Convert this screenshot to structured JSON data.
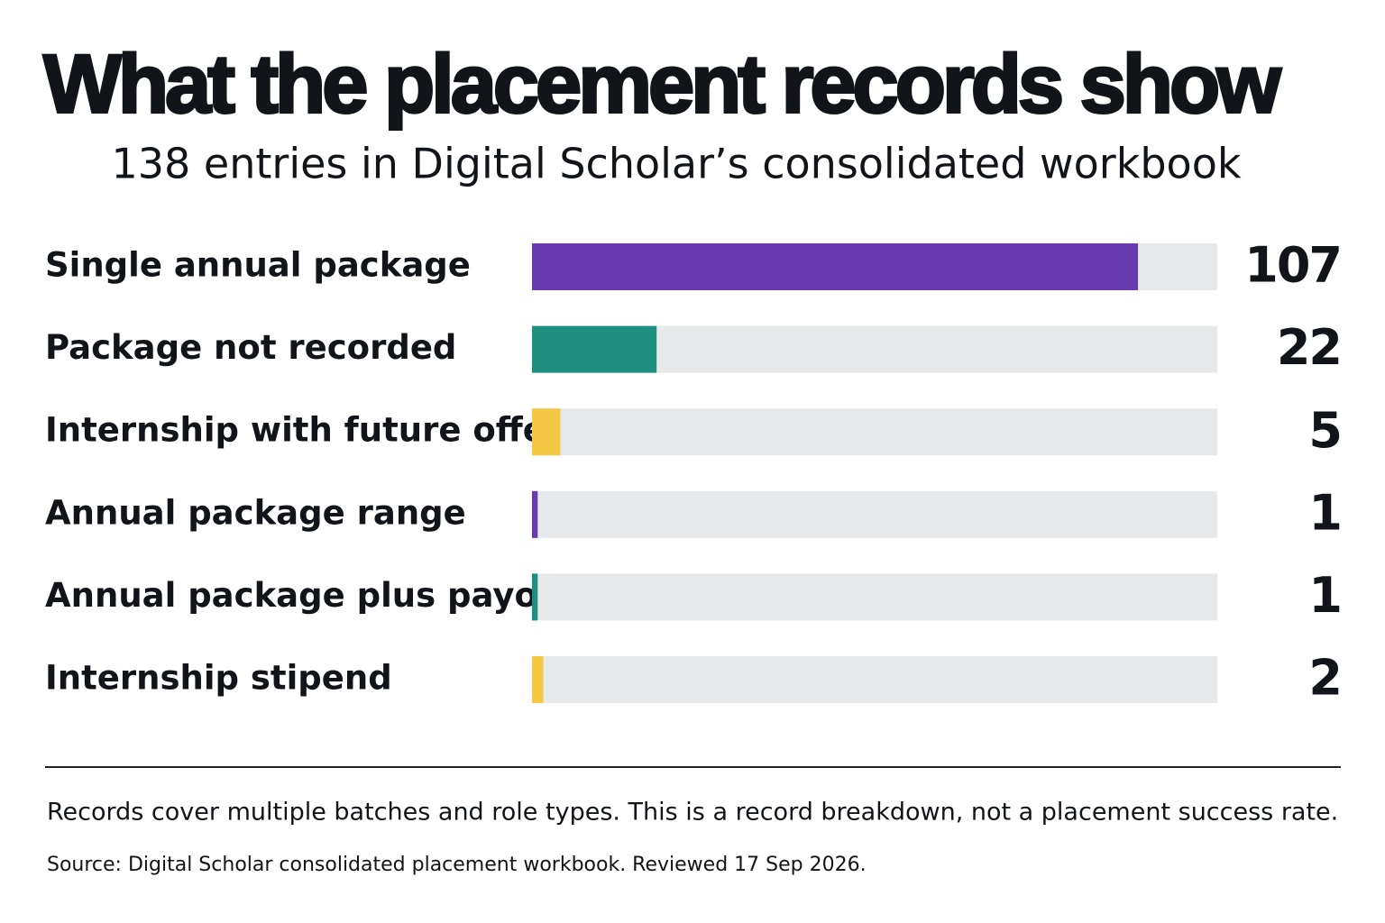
{
  "chart_data": {
    "type": "bar",
    "orientation": "horizontal",
    "title": "What the placement records show",
    "subtitle": "138 entries in Digital Scholar’s consolidated workbook",
    "categories": [
      "Single annual package",
      "Package not recorded",
      "Internship with future offer",
      "Annual package range",
      "Annual package plus payout",
      "Internship stipend"
    ],
    "values": [
      107,
      22,
      5,
      1,
      1,
      2
    ],
    "colors": [
      "#673ab0",
      "#1e8f7e",
      "#f4c842",
      "#673ab0",
      "#1e8f7e",
      "#f4c842"
    ],
    "track_color": "#e6e8ea",
    "xlim": [
      0,
      121
    ],
    "note": "Records cover multiple batches and role types. This is a record breakdown, not a placement success rate.",
    "source": "Source: Digital Scholar consolidated placement workbook. Reviewed 17 Sep 2026."
  }
}
